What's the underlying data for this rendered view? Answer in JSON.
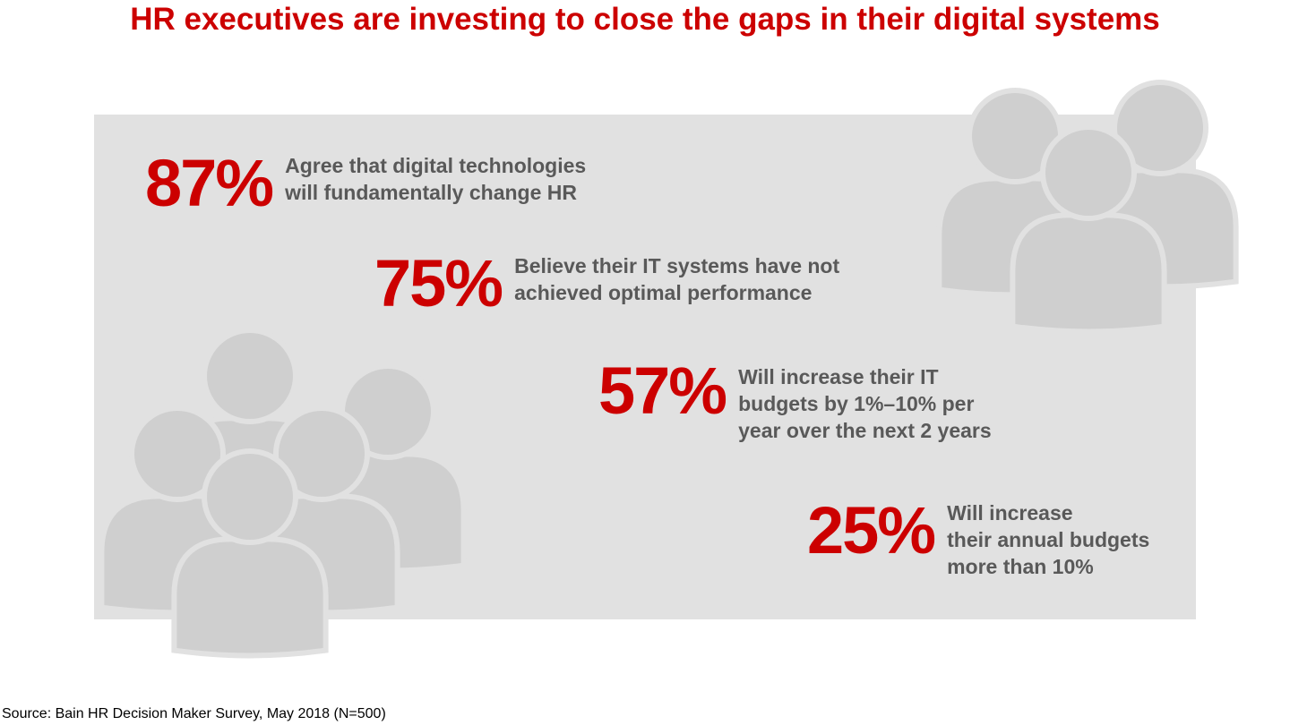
{
  "title": "HR executives are investing to close the gaps in their digital systems",
  "colors": {
    "accent": "#cc0000",
    "panel": "#e1e1e1",
    "icon": "#cfcfcf",
    "text": "#595959"
  },
  "icons": [
    "people-group-icon",
    "people-group-icon"
  ],
  "stats": [
    {
      "value": "87%",
      "text": "Agree that digital technologies\nwill fundamentally change HR"
    },
    {
      "value": "75%",
      "text": "Believe their IT systems have not\nachieved optimal performance"
    },
    {
      "value": "57%",
      "text": "Will increase their IT\nbudgets by 1%–10% per\nyear over the next 2 years"
    },
    {
      "value": "25%",
      "text": "Will increase\ntheir annual budgets\nmore than 10%"
    }
  ],
  "source": "Source: Bain HR Decision Maker Survey, May 2018 (N=500)"
}
